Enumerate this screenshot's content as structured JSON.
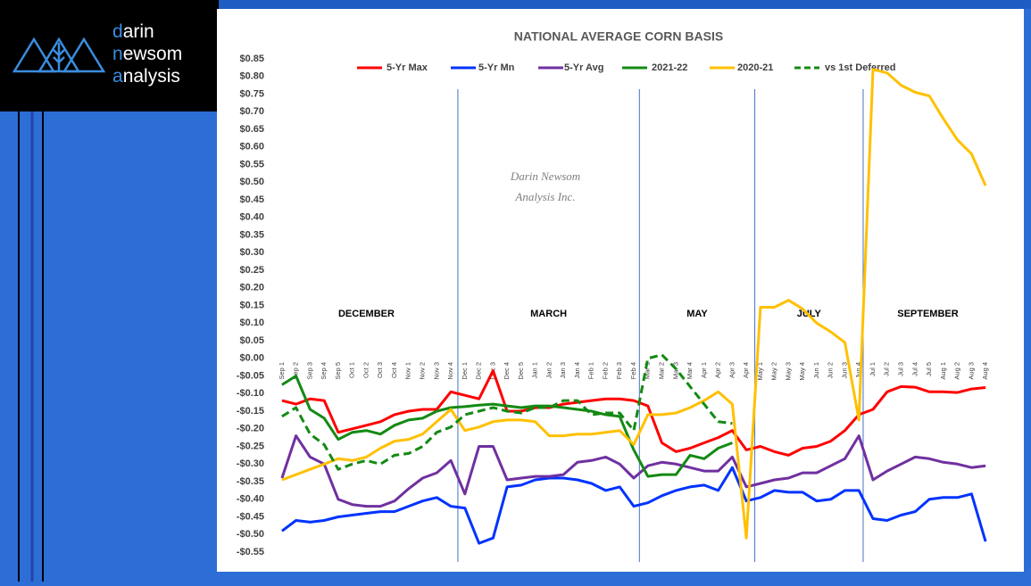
{
  "logo": {
    "lines": [
      {
        "accent": "d",
        "rest": "arin"
      },
      {
        "accent": "n",
        "rest": "ewsom"
      },
      {
        "accent": "a",
        "rest": "nalysis"
      }
    ]
  },
  "chart_data": {
    "type": "line",
    "title": "NATIONAL AVERAGE CORN BASIS",
    "watermark": [
      "Darin Newsom",
      "Analysis Inc."
    ],
    "period_labels": [
      "DECEMBER",
      "MARCH",
      "MAY",
      "JULY",
      "SEPTEMBER"
    ],
    "categories": [
      "Sep 1",
      "Sep 2",
      "Sep 3",
      "Sep 4",
      "Sep 5",
      "Oct 1",
      "Oct 2",
      "Oct 3",
      "Oct 4",
      "Nov 1",
      "Nov 2",
      "Nov 3",
      "Nov 4",
      "Dec 1",
      "Dec 2",
      "Dec 3",
      "Dec 4",
      "Dec 5",
      "Jan 1",
      "Jan 2",
      "Jan 3",
      "Jan 4",
      "Feb 1",
      "Feb 2",
      "Feb 3",
      "Feb 4",
      "Mar 1",
      "Mar 2",
      "Mar 3",
      "Mar 4",
      "Apr 1",
      "Apr 2",
      "Apr 3",
      "Apr 4",
      "May 1",
      "May 2",
      "May 3",
      "May 4",
      "Jun 1",
      "Jun 2",
      "Jun 3",
      "Jun 4",
      "Jul 1",
      "Jul 2",
      "Jul 3",
      "Jul 4",
      "Jul 5",
      "Aug 1",
      "Aug 2",
      "Aug 3",
      "Aug 4"
    ],
    "series": [
      {
        "name": "5-Yr Max",
        "color": "#ff0000",
        "values": [
          -0.12,
          -0.13,
          -0.115,
          -0.12,
          -0.21,
          -0.2,
          -0.19,
          -0.18,
          -0.16,
          -0.15,
          -0.145,
          -0.145,
          -0.095,
          -0.105,
          -0.115,
          -0.035,
          -0.15,
          -0.15,
          -0.14,
          -0.14,
          -0.13,
          -0.125,
          -0.12,
          -0.115,
          -0.115,
          -0.12,
          -0.135,
          -0.24,
          -0.265,
          -0.255,
          -0.24,
          -0.225,
          -0.205,
          -0.26,
          -0.25,
          -0.265,
          -0.275,
          -0.255,
          -0.25,
          -0.235,
          -0.205,
          -0.16,
          -0.145,
          -0.095,
          -0.08,
          -0.082,
          -0.095,
          -0.095,
          -0.097,
          -0.087,
          -0.083
        ]
      },
      {
        "name": "5-Yr Mn",
        "color": "#0033ff",
        "values": [
          -0.49,
          -0.46,
          -0.465,
          -0.46,
          -0.45,
          -0.445,
          -0.44,
          -0.435,
          -0.435,
          -0.42,
          -0.405,
          -0.395,
          -0.42,
          -0.425,
          -0.525,
          -0.51,
          -0.365,
          -0.36,
          -0.345,
          -0.34,
          -0.34,
          -0.345,
          -0.355,
          -0.375,
          -0.365,
          -0.42,
          -0.41,
          -0.39,
          -0.375,
          -0.365,
          -0.36,
          -0.375,
          -0.31,
          -0.405,
          -0.395,
          -0.375,
          -0.38,
          -0.38,
          -0.405,
          -0.4,
          -0.375,
          -0.375,
          -0.455,
          -0.46,
          -0.445,
          -0.435,
          -0.4,
          -0.395,
          -0.395,
          -0.385,
          -0.52
        ]
      },
      {
        "name": "5-Yr Avg",
        "color": "#7030a0",
        "values": [
          -0.34,
          -0.22,
          -0.28,
          -0.3,
          -0.4,
          -0.415,
          -0.42,
          -0.42,
          -0.405,
          -0.37,
          -0.34,
          -0.325,
          -0.29,
          -0.385,
          -0.25,
          -0.25,
          -0.345,
          -0.34,
          -0.335,
          -0.335,
          -0.33,
          -0.295,
          -0.29,
          -0.28,
          -0.3,
          -0.34,
          -0.305,
          -0.295,
          -0.3,
          -0.31,
          -0.32,
          -0.32,
          -0.28,
          -0.365,
          -0.355,
          -0.345,
          -0.34,
          -0.325,
          -0.325,
          -0.305,
          -0.285,
          -0.22,
          -0.345,
          -0.32,
          -0.3,
          -0.28,
          -0.285,
          -0.295,
          -0.3,
          -0.31,
          -0.305
        ]
      },
      {
        "name": "2021-22",
        "color": "#138a13",
        "values": [
          -0.075,
          -0.05,
          -0.145,
          -0.17,
          -0.23,
          -0.21,
          -0.205,
          -0.215,
          -0.19,
          -0.175,
          -0.17,
          -0.15,
          -0.14,
          -0.137,
          -0.133,
          -0.13,
          -0.135,
          -0.14,
          -0.135,
          -0.135,
          -0.14,
          -0.145,
          -0.15,
          -0.16,
          -0.165,
          -0.26,
          -0.335,
          -0.33,
          -0.33,
          -0.275,
          -0.285,
          -0.255,
          -0.24,
          null,
          null,
          null,
          null,
          null,
          null,
          null,
          null,
          null,
          null,
          null,
          null,
          null,
          null,
          null,
          null,
          null,
          null
        ]
      },
      {
        "name": "2020-21",
        "color": "#ffc000",
        "values": [
          -0.345,
          -0.33,
          -0.315,
          -0.3,
          -0.285,
          -0.29,
          -0.28,
          -0.255,
          -0.235,
          -0.23,
          -0.215,
          -0.18,
          -0.145,
          -0.205,
          -0.195,
          -0.18,
          -0.175,
          -0.175,
          -0.18,
          -0.22,
          -0.22,
          -0.215,
          -0.215,
          -0.21,
          -0.205,
          -0.245,
          -0.16,
          -0.16,
          -0.155,
          -0.14,
          -0.12,
          -0.095,
          -0.13,
          -0.51,
          0.145,
          0.145,
          0.165,
          0.14,
          0.1,
          0.075,
          0.045,
          -0.175,
          0.82,
          0.81,
          0.775,
          0.755,
          0.745,
          0.68,
          0.62,
          0.58,
          0.49
        ]
      },
      {
        "name": "vs 1st Deferred",
        "color": "#138a13",
        "dashed": true,
        "values": [
          -0.165,
          -0.14,
          -0.215,
          -0.245,
          -0.315,
          -0.3,
          -0.29,
          -0.3,
          -0.275,
          -0.27,
          -0.25,
          -0.21,
          -0.195,
          -0.16,
          -0.15,
          -0.14,
          -0.15,
          -0.155,
          -0.14,
          -0.14,
          -0.12,
          -0.12,
          -0.16,
          -0.155,
          -0.155,
          -0.205,
          0.0,
          0.01,
          -0.03,
          -0.08,
          -0.13,
          -0.18,
          -0.185,
          null,
          null,
          null,
          null,
          null,
          null,
          null,
          null,
          null,
          null,
          null,
          null,
          null,
          null,
          null,
          null,
          null,
          null
        ]
      }
    ],
    "ylim": [
      -0.55,
      0.85
    ],
    "yticks": [
      {
        "value": 0.85,
        "label": "$0.85"
      },
      {
        "value": 0.8,
        "label": "$0.80"
      },
      {
        "value": 0.75,
        "label": "$0.75"
      },
      {
        "value": 0.7,
        "label": "$0.70"
      },
      {
        "value": 0.65,
        "label": "$0.65"
      },
      {
        "value": 0.6,
        "label": "$0.60"
      },
      {
        "value": 0.55,
        "label": "$0.55"
      },
      {
        "value": 0.5,
        "label": "$0.50"
      },
      {
        "value": 0.45,
        "label": "$0.45"
      },
      {
        "value": 0.4,
        "label": "$0.40"
      },
      {
        "value": 0.35,
        "label": "$0.35"
      },
      {
        "value": 0.3,
        "label": "$0.30"
      },
      {
        "value": 0.25,
        "label": "$0.25"
      },
      {
        "value": 0.2,
        "label": "$0.20"
      },
      {
        "value": 0.15,
        "label": "$0.15"
      },
      {
        "value": 0.1,
        "label": "$0.10"
      },
      {
        "value": 0.05,
        "label": "$0.05"
      },
      {
        "value": 0,
        "label": "$0.00"
      },
      {
        "value": -0.05,
        "label": "-$0.05"
      },
      {
        "value": -0.1,
        "label": "-$0.10"
      },
      {
        "value": -0.15,
        "label": "-$0.15"
      },
      {
        "value": -0.2,
        "label": "-$0.20"
      },
      {
        "value": -0.25,
        "label": "-$0.25"
      },
      {
        "value": -0.3,
        "label": "-$0.30"
      },
      {
        "value": -0.35,
        "label": "-$0.35"
      },
      {
        "value": -0.4,
        "label": "-$0.40"
      },
      {
        "value": -0.45,
        "label": "-$0.45"
      },
      {
        "value": -0.5,
        "label": "-$0.50"
      },
      {
        "value": -0.55,
        "label": "-$0.55"
      }
    ],
    "grid": false
  }
}
